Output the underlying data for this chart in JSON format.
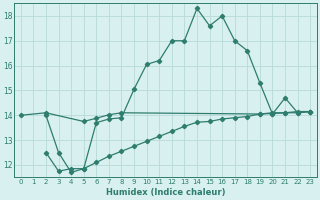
{
  "line1_x": [
    2,
    3,
    4,
    5,
    6,
    7,
    8,
    9,
    10,
    11,
    12,
    13,
    14,
    15,
    16,
    17,
    18,
    19,
    20,
    21,
    22,
    23
  ],
  "line1_y": [
    14.0,
    12.5,
    11.7,
    11.85,
    13.7,
    13.85,
    13.9,
    15.05,
    16.05,
    16.2,
    17.0,
    17.0,
    18.3,
    17.6,
    18.0,
    17.0,
    16.6,
    15.3,
    14.05,
    14.7,
    14.1,
    14.15
  ],
  "line2_x": [
    0,
    2,
    5,
    6,
    7,
    8,
    19,
    20,
    21,
    22,
    23
  ],
  "line2_y": [
    14.0,
    14.1,
    13.75,
    13.88,
    14.02,
    14.1,
    14.05,
    14.07,
    14.1,
    14.1,
    14.15
  ],
  "line3_x": [
    2,
    3,
    4,
    5,
    6,
    7,
    8,
    9,
    10,
    11,
    12,
    13,
    14,
    15,
    16,
    17,
    18,
    19,
    20,
    21,
    22,
    23
  ],
  "line3_y": [
    12.5,
    11.75,
    11.85,
    11.85,
    12.1,
    12.35,
    12.55,
    12.75,
    12.95,
    13.15,
    13.35,
    13.55,
    13.72,
    13.75,
    13.85,
    13.9,
    13.95,
    14.05,
    14.1,
    14.1,
    14.15,
    14.15
  ],
  "line_color": "#2e7d6e",
  "bg_color": "#d8f0f0",
  "grid_color": "#b8dada",
  "xlabel": "Humidex (Indice chaleur)",
  "xlim": [
    -0.5,
    23.5
  ],
  "ylim": [
    11.5,
    18.5
  ],
  "xticks": [
    0,
    1,
    2,
    3,
    4,
    5,
    6,
    7,
    8,
    9,
    10,
    11,
    12,
    13,
    14,
    15,
    16,
    17,
    18,
    19,
    20,
    21,
    22,
    23
  ],
  "yticks": [
    12,
    13,
    14,
    15,
    16,
    17,
    18
  ],
  "marker": "D",
  "markersize": 2.2,
  "linewidth": 0.9,
  "tick_fontsize": 5.0,
  "xlabel_fontsize": 6.0
}
